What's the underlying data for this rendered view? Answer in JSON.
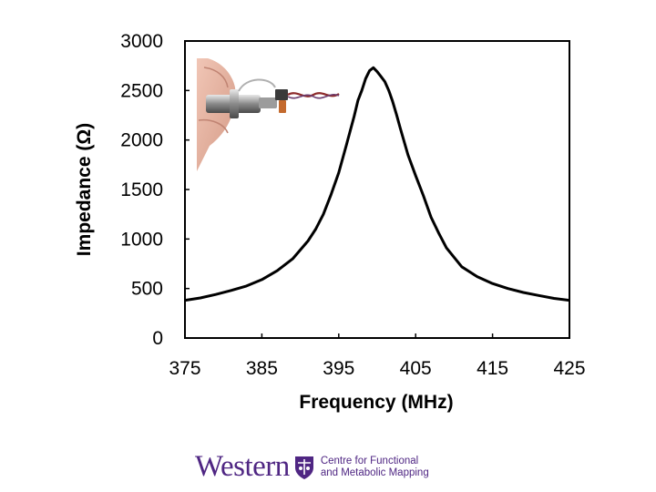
{
  "chart_data": {
    "type": "line",
    "title": "",
    "xlabel": "Frequency (MHz)",
    "ylabel": "Impedance (Ω)",
    "xlim": [
      375,
      425
    ],
    "ylim": [
      0,
      3000
    ],
    "xticks": [
      "375",
      "385",
      "395",
      "405",
      "415",
      "425"
    ],
    "yticks": [
      "0",
      "500",
      "1000",
      "1500",
      "2000",
      "2500",
      "3000"
    ],
    "series": [
      {
        "name": "Impedance",
        "color": "#000000",
        "x": [
          375,
          377,
          379,
          381,
          383,
          385,
          387,
          389,
          391,
          392,
          393,
          394,
          395,
          396,
          397,
          397.5,
          398,
          398.5,
          399,
          399.5,
          400,
          400.5,
          401,
          401.5,
          402,
          402.5,
          403,
          404,
          405,
          406,
          407,
          408,
          409,
          411,
          413,
          415,
          417,
          419,
          421,
          423,
          425
        ],
        "y": [
          380,
          405,
          440,
          480,
          525,
          590,
          680,
          800,
          980,
          1100,
          1250,
          1450,
          1670,
          1950,
          2240,
          2400,
          2500,
          2620,
          2700,
          2730,
          2690,
          2640,
          2590,
          2500,
          2390,
          2260,
          2120,
          1850,
          1640,
          1440,
          1220,
          1060,
          910,
          720,
          620,
          550,
          500,
          460,
          430,
          400,
          380
        ]
      }
    ]
  },
  "photo": {
    "description_icon": "coil-probe-photo"
  },
  "footer": {
    "wordmark": "Western",
    "unit_line1": "Centre for Functional",
    "unit_line2": "and Metabolic Mapping",
    "brand_color": "#4f2683"
  }
}
